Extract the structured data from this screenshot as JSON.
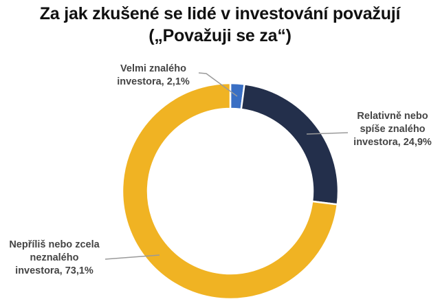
{
  "title": {
    "line1": "Za jak zkušené se lidé v investování považují",
    "line2": "(„Považuji se za“)"
  },
  "colors": {
    "velmi_znaleho": "#3A6FC4",
    "relativne_znaleho": "#232F4B",
    "neznaleho": "#F0B323",
    "leader_line": "#9a9a9a",
    "label_text": "#444444"
  },
  "labels": {
    "top": {
      "line1": "Velmi znalého",
      "line2": "investora, 2,1%"
    },
    "right": {
      "line1": "Relativně nebo",
      "line2": "spíše znalého",
      "line3": "investora, 24,9%"
    },
    "left": {
      "line1": "Nepříliš nebo zcela",
      "line2": "neznalého",
      "line3": "investora, 73,1%"
    }
  },
  "chart_data": {
    "type": "pie",
    "subtype": "donut",
    "title": "Za jak zkušené se lidé v investování považují („Považuji se za“)",
    "categories": [
      "Velmi znalého investora",
      "Relativně nebo spíše znalého investora",
      "Nepříliš nebo zcela neznalého investora"
    ],
    "values": [
      2.1,
      24.9,
      73.1
    ],
    "unit": "%",
    "colors": [
      "#3A6FC4",
      "#232F4B",
      "#F0B323"
    ],
    "start_angle": "top (12 o'clock), clockwise",
    "data_labels": [
      "Velmi znalého investora, 2,1%",
      "Relativně nebo spíše znalého investora, 24,9%",
      "Nepříliš nebo zcela neznalého investora, 73,1%"
    ],
    "legend": "none (data labels with leader lines)"
  }
}
